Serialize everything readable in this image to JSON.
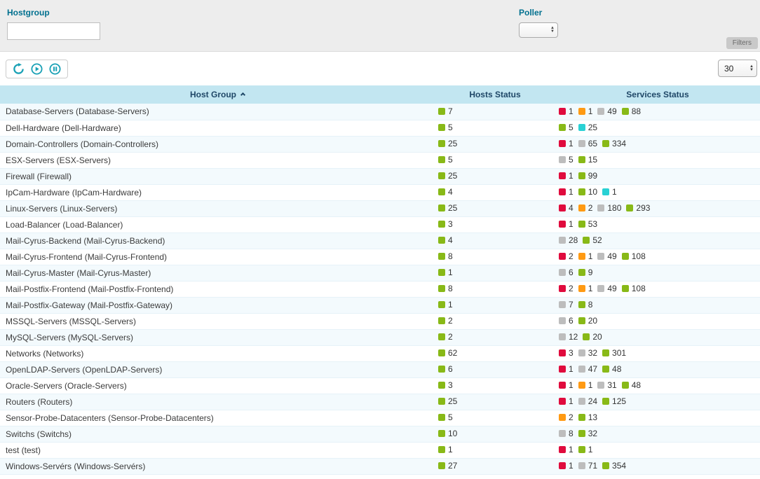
{
  "filters": {
    "hostgroup_label": "Hostgroup",
    "hostgroup_value": "",
    "poller_label": "Poller",
    "poller_value": "",
    "filters_tab_label": "Filters"
  },
  "toolbar": {
    "buttons": [
      "refresh",
      "play",
      "pause"
    ],
    "page_size_value": "30"
  },
  "colors": {
    "ok": "#88B917",
    "critical": "#E00B3D",
    "warning": "#FF9A13",
    "unknown": "#BDBDBD",
    "pending": "#2AD1D4"
  },
  "table": {
    "columns": {
      "host_group": "Host Group",
      "hosts_status": "Hosts Status",
      "services_status": "Services Status"
    },
    "rows": [
      {
        "name": "Database-Servers (Database-Servers)",
        "hosts": [
          {
            "type": "ok",
            "count": 7
          }
        ],
        "services": [
          {
            "type": "critical",
            "count": 1
          },
          {
            "type": "warning",
            "count": 1
          },
          {
            "type": "unknown",
            "count": 49
          },
          {
            "type": "ok",
            "count": 88
          }
        ]
      },
      {
        "name": "Dell-Hardware (Dell-Hardware)",
        "hosts": [
          {
            "type": "ok",
            "count": 5
          }
        ],
        "services": [
          {
            "type": "ok",
            "count": 5
          },
          {
            "type": "pending",
            "count": 25
          }
        ]
      },
      {
        "name": "Domain-Controllers (Domain-Controllers)",
        "hosts": [
          {
            "type": "ok",
            "count": 25
          }
        ],
        "services": [
          {
            "type": "critical",
            "count": 1
          },
          {
            "type": "unknown",
            "count": 65
          },
          {
            "type": "ok",
            "count": 334
          }
        ]
      },
      {
        "name": "ESX-Servers (ESX-Servers)",
        "hosts": [
          {
            "type": "ok",
            "count": 5
          }
        ],
        "services": [
          {
            "type": "unknown",
            "count": 5
          },
          {
            "type": "ok",
            "count": 15
          }
        ]
      },
      {
        "name": "Firewall (Firewall)",
        "hosts": [
          {
            "type": "ok",
            "count": 25
          }
        ],
        "services": [
          {
            "type": "critical",
            "count": 1
          },
          {
            "type": "ok",
            "count": 99
          }
        ]
      },
      {
        "name": "IpCam-Hardware (IpCam-Hardware)",
        "hosts": [
          {
            "type": "ok",
            "count": 4
          }
        ],
        "services": [
          {
            "type": "critical",
            "count": 1
          },
          {
            "type": "ok",
            "count": 10
          },
          {
            "type": "pending",
            "count": 1
          }
        ]
      },
      {
        "name": "Linux-Servers (Linux-Servers)",
        "hosts": [
          {
            "type": "ok",
            "count": 25
          }
        ],
        "services": [
          {
            "type": "critical",
            "count": 4
          },
          {
            "type": "warning",
            "count": 2
          },
          {
            "type": "unknown",
            "count": 180
          },
          {
            "type": "ok",
            "count": 293
          }
        ]
      },
      {
        "name": "Load-Balancer (Load-Balancer)",
        "hosts": [
          {
            "type": "ok",
            "count": 3
          }
        ],
        "services": [
          {
            "type": "critical",
            "count": 1
          },
          {
            "type": "ok",
            "count": 53
          }
        ]
      },
      {
        "name": "Mail-Cyrus-Backend (Mail-Cyrus-Backend)",
        "hosts": [
          {
            "type": "ok",
            "count": 4
          }
        ],
        "services": [
          {
            "type": "unknown",
            "count": 28
          },
          {
            "type": "ok",
            "count": 52
          }
        ]
      },
      {
        "name": "Mail-Cyrus-Frontend (Mail-Cyrus-Frontend)",
        "hosts": [
          {
            "type": "ok",
            "count": 8
          }
        ],
        "services": [
          {
            "type": "critical",
            "count": 2
          },
          {
            "type": "warning",
            "count": 1
          },
          {
            "type": "unknown",
            "count": 49
          },
          {
            "type": "ok",
            "count": 108
          }
        ]
      },
      {
        "name": "Mail-Cyrus-Master (Mail-Cyrus-Master)",
        "hosts": [
          {
            "type": "ok",
            "count": 1
          }
        ],
        "services": [
          {
            "type": "unknown",
            "count": 6
          },
          {
            "type": "ok",
            "count": 9
          }
        ]
      },
      {
        "name": "Mail-Postfix-Frontend (Mail-Postfix-Frontend)",
        "hosts": [
          {
            "type": "ok",
            "count": 8
          }
        ],
        "services": [
          {
            "type": "critical",
            "count": 2
          },
          {
            "type": "warning",
            "count": 1
          },
          {
            "type": "unknown",
            "count": 49
          },
          {
            "type": "ok",
            "count": 108
          }
        ]
      },
      {
        "name": "Mail-Postfix-Gateway (Mail-Postfix-Gateway)",
        "hosts": [
          {
            "type": "ok",
            "count": 1
          }
        ],
        "services": [
          {
            "type": "unknown",
            "count": 7
          },
          {
            "type": "ok",
            "count": 8
          }
        ]
      },
      {
        "name": "MSSQL-Servers (MSSQL-Servers)",
        "hosts": [
          {
            "type": "ok",
            "count": 2
          }
        ],
        "services": [
          {
            "type": "unknown",
            "count": 6
          },
          {
            "type": "ok",
            "count": 20
          }
        ]
      },
      {
        "name": "MySQL-Servers (MySQL-Servers)",
        "hosts": [
          {
            "type": "ok",
            "count": 2
          }
        ],
        "services": [
          {
            "type": "unknown",
            "count": 12
          },
          {
            "type": "ok",
            "count": 20
          }
        ]
      },
      {
        "name": "Networks (Networks)",
        "hosts": [
          {
            "type": "ok",
            "count": 62
          }
        ],
        "services": [
          {
            "type": "critical",
            "count": 3
          },
          {
            "type": "unknown",
            "count": 32
          },
          {
            "type": "ok",
            "count": 301
          }
        ]
      },
      {
        "name": "OpenLDAP-Servers (OpenLDAP-Servers)",
        "hosts": [
          {
            "type": "ok",
            "count": 6
          }
        ],
        "services": [
          {
            "type": "critical",
            "count": 1
          },
          {
            "type": "unknown",
            "count": 47
          },
          {
            "type": "ok",
            "count": 48
          }
        ]
      },
      {
        "name": "Oracle-Servers (Oracle-Servers)",
        "hosts": [
          {
            "type": "ok",
            "count": 3
          }
        ],
        "services": [
          {
            "type": "critical",
            "count": 1
          },
          {
            "type": "warning",
            "count": 1
          },
          {
            "type": "unknown",
            "count": 31
          },
          {
            "type": "ok",
            "count": 48
          }
        ]
      },
      {
        "name": "Routers (Routers)",
        "hosts": [
          {
            "type": "ok",
            "count": 25
          }
        ],
        "services": [
          {
            "type": "critical",
            "count": 1
          },
          {
            "type": "unknown",
            "count": 24
          },
          {
            "type": "ok",
            "count": 125
          }
        ]
      },
      {
        "name": "Sensor-Probe-Datacenters (Sensor-Probe-Datacenters)",
        "hosts": [
          {
            "type": "ok",
            "count": 5
          }
        ],
        "services": [
          {
            "type": "warning",
            "count": 2
          },
          {
            "type": "ok",
            "count": 13
          }
        ]
      },
      {
        "name": "Switchs (Switchs)",
        "hosts": [
          {
            "type": "ok",
            "count": 10
          }
        ],
        "services": [
          {
            "type": "unknown",
            "count": 8
          },
          {
            "type": "ok",
            "count": 32
          }
        ]
      },
      {
        "name": "test (test)",
        "hosts": [
          {
            "type": "ok",
            "count": 1
          }
        ],
        "services": [
          {
            "type": "critical",
            "count": 1
          },
          {
            "type": "ok",
            "count": 1
          }
        ]
      },
      {
        "name": "Windows-Servérs (Windows-Servérs)",
        "hosts": [
          {
            "type": "ok",
            "count": 27
          }
        ],
        "services": [
          {
            "type": "critical",
            "count": 1
          },
          {
            "type": "unknown",
            "count": 71
          },
          {
            "type": "ok",
            "count": 354
          }
        ]
      }
    ]
  }
}
